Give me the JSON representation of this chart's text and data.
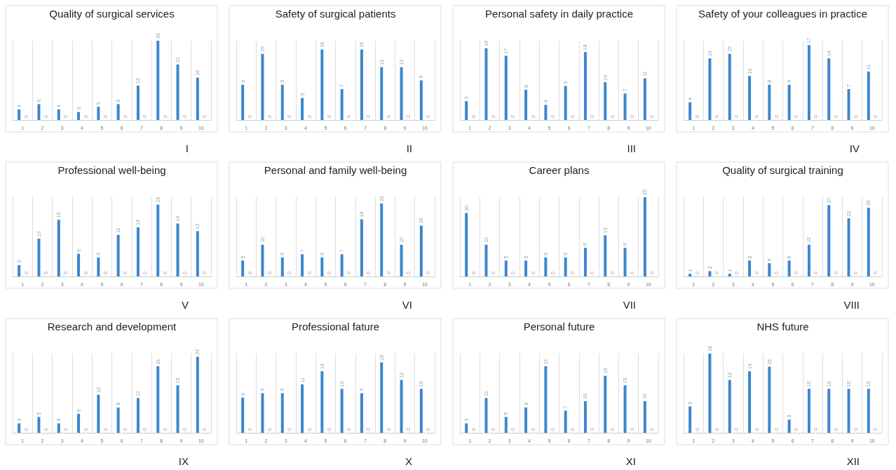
{
  "chart_data": [
    {
      "type": "bar",
      "title": "Quality of surgical services",
      "annotations": [
        "I"
      ],
      "categories": [
        "1",
        "2",
        "3",
        "4",
        "5",
        "6",
        "7",
        "8",
        "9",
        "10"
      ],
      "data_labels": true,
      "grid": "x",
      "series": [
        {
          "color": "#3a87d0",
          "values": [
            4,
            6,
            4,
            3,
            5,
            6,
            13,
            30,
            21,
            16
          ]
        },
        {
          "color": "#ed7d31",
          "values": [
            0,
            0,
            0,
            0,
            0,
            0,
            0,
            0,
            0,
            0
          ]
        }
      ]
    },
    {
      "type": "bar",
      "title": "Safety of surgical patients",
      "annotations": [
        "II"
      ],
      "categories": [
        "1",
        "2",
        "3",
        "4",
        "5",
        "6",
        "7",
        "8",
        "9",
        "10"
      ],
      "data_labels": true,
      "grid": "x",
      "series": [
        {
          "color": "#3a87d0",
          "values": [
            8,
            15,
            8,
            5,
            16,
            7,
            16,
            12,
            12,
            9
          ]
        },
        {
          "color": "#ed7d31",
          "values": [
            0,
            0,
            0,
            0,
            0,
            0,
            0,
            0,
            0,
            0
          ]
        }
      ]
    },
    {
      "type": "bar",
      "title": "Personal safety in daily practice",
      "annotations": [
        "III"
      ],
      "categories": [
        "1",
        "2",
        "3",
        "4",
        "5",
        "6",
        "7",
        "8",
        "9",
        "10"
      ],
      "data_labels": true,
      "grid": "x",
      "series": [
        {
          "color": "#3a87d0",
          "values": [
            5,
            19,
            17,
            8,
            4,
            9,
            18,
            10,
            7,
            11
          ]
        },
        {
          "color": "#ed7d31",
          "values": [
            0,
            0,
            0,
            0,
            0,
            0,
            0,
            0,
            0,
            0
          ]
        }
      ]
    },
    {
      "type": "bar",
      "title": "Safety of your colleagues in practice",
      "annotations": [
        "IV"
      ],
      "categories": [
        "1",
        "2",
        "3",
        "4",
        "5",
        "6",
        "7",
        "8",
        "9",
        "10"
      ],
      "data_labels": true,
      "grid": "x",
      "series": [
        {
          "color": "#3a87d0",
          "values": [
            4,
            14,
            15,
            10,
            8,
            8,
            17,
            14,
            7,
            11
          ]
        },
        {
          "color": "#ed7d31",
          "values": [
            0,
            0,
            0,
            0,
            0,
            0,
            0,
            0,
            0,
            0
          ]
        }
      ]
    },
    {
      "type": "bar",
      "title": "Professional well-being",
      "annotations": [
        "V"
      ],
      "categories": [
        "1",
        "2",
        "3",
        "4",
        "5",
        "6",
        "7",
        "8",
        "9",
        "10"
      ],
      "data_labels": true,
      "grid": "x",
      "series": [
        {
          "color": "#3a87d0",
          "values": [
            3,
            10,
            15,
            6,
            5,
            11,
            13,
            19,
            14,
            12
          ]
        },
        {
          "color": "#ed7d31",
          "values": [
            0,
            0,
            0,
            0,
            0,
            0,
            0,
            0,
            0,
            0
          ]
        }
      ]
    },
    {
      "type": "bar",
      "title": "Personal and family well-being",
      "annotations": [
        "VI"
      ],
      "categories": [
        "1",
        "2",
        "3",
        "4",
        "5",
        "6",
        "7",
        "8",
        "9",
        "10"
      ],
      "data_labels": true,
      "grid": "x",
      "series": [
        {
          "color": "#3a87d0",
          "values": [
            5,
            10,
            6,
            7,
            6,
            7,
            18,
            23,
            10,
            16
          ]
        },
        {
          "color": "#ed7d31",
          "values": [
            0,
            0,
            0,
            0,
            0,
            0,
            0,
            0,
            0,
            0
          ]
        }
      ]
    },
    {
      "type": "bar",
      "title": "Career plans",
      "annotations": [
        "VII"
      ],
      "categories": [
        "1",
        "2",
        "3",
        "4",
        "5",
        "6",
        "7",
        "8",
        "9",
        "10"
      ],
      "data_labels": true,
      "grid": "x",
      "series": [
        {
          "color": "#3a87d0",
          "values": [
            20,
            10,
            5,
            5,
            6,
            6,
            9,
            13,
            9,
            25
          ]
        },
        {
          "color": "#ed7d31",
          "values": [
            0,
            0,
            0,
            0,
            0,
            0,
            0,
            0,
            0,
            0
          ]
        }
      ]
    },
    {
      "type": "bar",
      "title": "Quality of surgical training",
      "annotations": [
        "VIII"
      ],
      "categories": [
        "1",
        "2",
        "3",
        "4",
        "5",
        "6",
        "7",
        "8",
        "9",
        "10"
      ],
      "data_labels": true,
      "grid": "x",
      "series": [
        {
          "color": "#3a87d0",
          "values": [
            1,
            2,
            1,
            6,
            5,
            6,
            12,
            27,
            22,
            26
          ]
        },
        {
          "color": "#ed7d31",
          "values": [
            0,
            0,
            0,
            0,
            0,
            0,
            0,
            0,
            0,
            0
          ]
        }
      ]
    },
    {
      "type": "bar",
      "title": "Research and development",
      "annotations": [
        "IX"
      ],
      "categories": [
        "1",
        "2",
        "3",
        "4",
        "5",
        "6",
        "7",
        "8",
        "9",
        "10"
      ],
      "data_labels": true,
      "grid": "x",
      "series": [
        {
          "color": "#3a87d0",
          "values": [
            3,
            5,
            3,
            6,
            12,
            8,
            11,
            21,
            15,
            24
          ]
        },
        {
          "color": "#ed7d31",
          "values": [
            0,
            0,
            0,
            0,
            0,
            0,
            0,
            0,
            0,
            0
          ]
        }
      ]
    },
    {
      "type": "bar",
      "title": "Professional fature",
      "annotations": [
        "X"
      ],
      "categories": [
        "1",
        "2",
        "3",
        "4",
        "5",
        "6",
        "7",
        "8",
        "9",
        "10"
      ],
      "data_labels": true,
      "grid": "x",
      "series": [
        {
          "color": "#3a87d0",
          "values": [
            8,
            9,
            9,
            11,
            14,
            10,
            9,
            16,
            12,
            10
          ]
        },
        {
          "color": "#ed7d31",
          "values": [
            0,
            0,
            0,
            0,
            0,
            0,
            0,
            0,
            0,
            0
          ]
        }
      ]
    },
    {
      "type": "bar",
      "title": "Personal future",
      "annotations": [
        "XI"
      ],
      "categories": [
        "1",
        "2",
        "3",
        "4",
        "5",
        "6",
        "7",
        "8",
        "9",
        "10"
      ],
      "data_labels": true,
      "grid": "x",
      "series": [
        {
          "color": "#3a87d0",
          "values": [
            3,
            11,
            5,
            8,
            21,
            7,
            10,
            18,
            15,
            10
          ]
        },
        {
          "color": "#ed7d31",
          "values": [
            0,
            0,
            0,
            0,
            0,
            0,
            0,
            0,
            0,
            0
          ]
        }
      ]
    },
    {
      "type": "bar",
      "title": "NHS future",
      "annotations": [
        "XII"
      ],
      "categories": [
        "1",
        "2",
        "3",
        "4",
        "5",
        "6",
        "7",
        "8",
        "9",
        "10"
      ],
      "data_labels": true,
      "grid": "x",
      "series": [
        {
          "color": "#3a87d0",
          "values": [
            6,
            18,
            12,
            14,
            15,
            3,
            10,
            10,
            10,
            10
          ]
        },
        {
          "color": "#ed7d31",
          "values": [
            0,
            0,
            0,
            0,
            0,
            0,
            0,
            0,
            0,
            0
          ]
        }
      ]
    }
  ]
}
